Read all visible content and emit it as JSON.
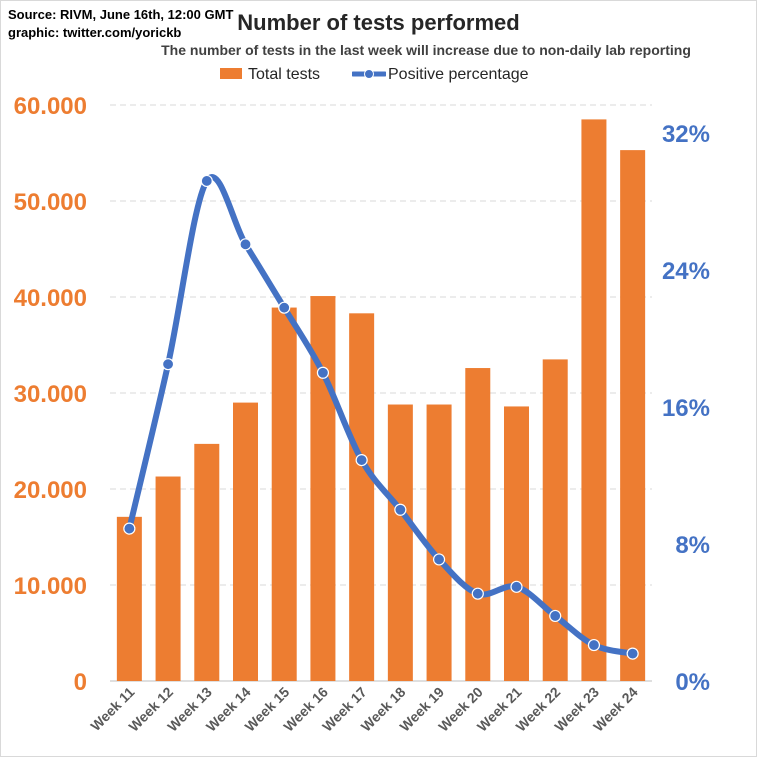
{
  "source_line1": "Source: RIVM, June 16th, 12:00  GMT",
  "source_line2": "graphic: twitter.com/yorickb",
  "colors": {
    "bars": "#ED7D31",
    "line": "#4472C4",
    "grid": "#d9d9d9"
  },
  "chart_data": {
    "type": "bar",
    "title": "Number of tests performed",
    "subtitle": "The number of tests in the last week will increase due to non-daily lab reporting",
    "categories": [
      "Week 11",
      "Week 12",
      "Week 13",
      "Week 14",
      "Week 15",
      "Week 16",
      "Week 17",
      "Week 18",
      "Week 19",
      "Week 20",
      "Week 21",
      "Week 22",
      "Week 23",
      "Week 24"
    ],
    "series": [
      {
        "name": "Total tests",
        "type": "bar",
        "axis": "left",
        "values": [
          17100,
          21300,
          24700,
          29000,
          38900,
          40100,
          38300,
          28800,
          28800,
          32600,
          28600,
          33500,
          58500,
          55300
        ]
      },
      {
        "name": "Positive percentage",
        "type": "line",
        "axis": "right",
        "values": [
          8.9,
          18.5,
          29.2,
          25.5,
          21.8,
          18.0,
          12.9,
          10.0,
          7.1,
          5.1,
          5.5,
          3.8,
          2.1,
          1.6
        ]
      }
    ],
    "left_axis": {
      "ylim": [
        0,
        60000
      ],
      "ticks": [
        0,
        10000,
        20000,
        30000,
        40000,
        50000,
        60000
      ],
      "tick_labels": [
        "0",
        "10.000",
        "20.000",
        "30.000",
        "40.000",
        "50.000",
        "60.000"
      ]
    },
    "right_axis": {
      "ylim": [
        0,
        32
      ],
      "ticks": [
        0,
        8,
        16,
        24,
        32
      ],
      "tick_labels": [
        "0%",
        "8%",
        "16%",
        "24%",
        "32%"
      ]
    },
    "grid": true,
    "legend": "top-center"
  }
}
